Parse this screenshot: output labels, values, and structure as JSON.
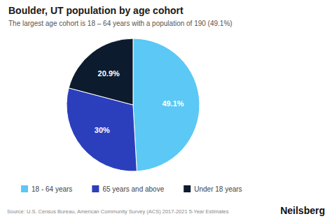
{
  "chart_data": {
    "type": "pie",
    "title": "Boulder, UT population by age cohort",
    "subtitle": "The largest age cohort is 18 – 64 years with a population of 190 (49.1%)",
    "categories": [
      "18 - 64 years",
      "65 years and above",
      "Under 18 years"
    ],
    "values": [
      49.1,
      30.0,
      20.9
    ],
    "value_labels": [
      "49.1%",
      "30%",
      "20.9%"
    ],
    "colors": [
      "#5bc8f5",
      "#2b3fbd",
      "#0d1b2e"
    ],
    "data_labels": true,
    "legend": "bottom",
    "annotations": [
      "Source: U.S. Census Bureau, American Community Survey (ACS) 2017-2021 5-Year Estimates",
      "Neilsberg"
    ]
  }
}
